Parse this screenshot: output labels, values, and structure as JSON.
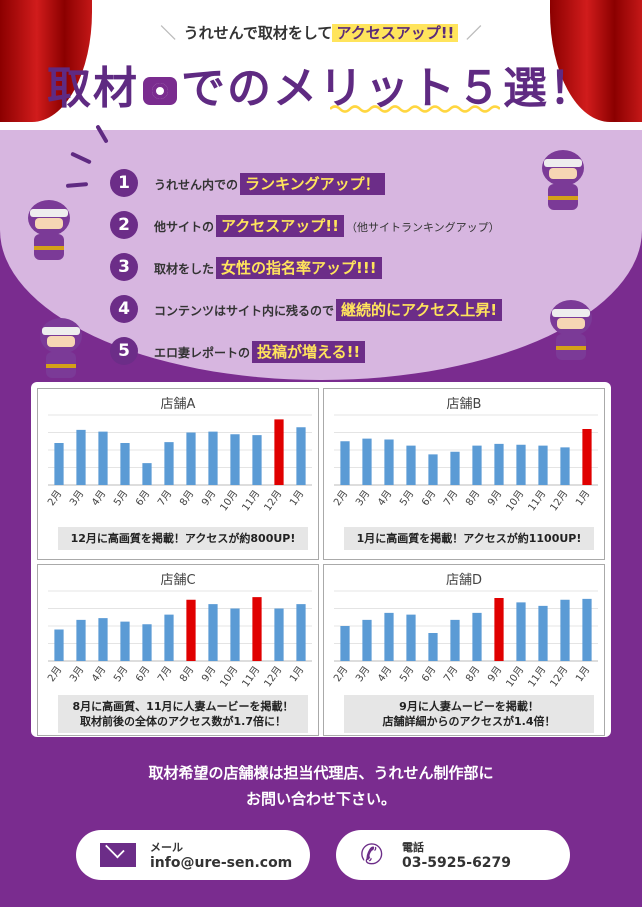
{
  "header": {
    "subtitle_lead": "うれせんで取材をして",
    "subtitle_highlight": "アクセスアップ!!",
    "title_part1": "取材",
    "title_part2": "でのメリット５選！"
  },
  "merits": [
    {
      "num": "1",
      "pre": "うれせん内での",
      "hl": "ランキングアップ！",
      "post": "",
      "note": ""
    },
    {
      "num": "2",
      "pre": "他サイトの",
      "hl": "アクセスアップ!!",
      "post": "",
      "note": "（他サイトランキングアップ）"
    },
    {
      "num": "3",
      "pre": "取材をした",
      "hl": "女性の指名率アップ!!!",
      "post": "",
      "note": ""
    },
    {
      "num": "4",
      "pre": "コンテンツはサイト内に残るので",
      "hl": "継続的にアクセス上昇!",
      "post": "",
      "note": ""
    },
    {
      "num": "5",
      "pre": "エロ妻レポートの",
      "hl": "投稿が増える!!",
      "post": "",
      "note": ""
    }
  ],
  "colors": {
    "bar": "#5b9bd5",
    "highlight_bar": "#e00000",
    "brand": "#6c2d88",
    "accent": "#ffe45c"
  },
  "chart_data": [
    {
      "type": "bar",
      "title": "店舗A",
      "categories": [
        "2月",
        "3月",
        "4月",
        "5月",
        "6月",
        "7月",
        "8月",
        "9月",
        "10月",
        "11月",
        "12月",
        "1月"
      ],
      "values": [
        48,
        63,
        61,
        48,
        25,
        49,
        60,
        61,
        58,
        57,
        75,
        66
      ],
      "highlight": [
        10
      ],
      "ylim": [
        0,
        80
      ],
      "note": [
        "12月に高画質を掲載！アクセスが約800UP!"
      ]
    },
    {
      "type": "bar",
      "title": "店舗B",
      "categories": [
        "2月",
        "3月",
        "4月",
        "5月",
        "6月",
        "7月",
        "8月",
        "9月",
        "10月",
        "11月",
        "12月",
        "1月"
      ],
      "values": [
        50,
        53,
        52,
        45,
        35,
        38,
        45,
        47,
        46,
        45,
        43,
        64
      ],
      "highlight": [
        11
      ],
      "ylim": [
        0,
        80
      ],
      "note": [
        "1月に高画質を掲載！アクセスが約1100UP!"
      ]
    },
    {
      "type": "bar",
      "title": "店舗C",
      "categories": [
        "2月",
        "3月",
        "4月",
        "5月",
        "6月",
        "7月",
        "8月",
        "9月",
        "10月",
        "11月",
        "12月",
        "1月"
      ],
      "values": [
        36,
        47,
        49,
        45,
        42,
        53,
        70,
        65,
        60,
        73,
        60,
        65
      ],
      "highlight": [
        6,
        9
      ],
      "ylim": [
        0,
        80
      ],
      "note": [
        "8月に高画質、11月に人妻ムービーを掲載！",
        "取材前後の全体のアクセス数が1.7倍に！"
      ]
    },
    {
      "type": "bar",
      "title": "店舗D",
      "categories": [
        "2月",
        "3月",
        "4月",
        "5月",
        "6月",
        "7月",
        "8月",
        "9月",
        "10月",
        "11月",
        "12月",
        "1月"
      ],
      "values": [
        40,
        47,
        55,
        53,
        32,
        47,
        55,
        72,
        67,
        63,
        70,
        71
      ],
      "highlight": [
        7
      ],
      "ylim": [
        0,
        80
      ],
      "note": [
        "9月に人妻ムービーを掲載！",
        "店舗詳細からのアクセスが1.4倍！"
      ]
    }
  ],
  "footer": {
    "cta_line1": "取材希望の店舗様は担当代理店、うれせん制作部に",
    "cta_line2": "お問い合わせ下さい。",
    "mail_label": "メール",
    "mail_value": "info@ure-sen.com",
    "tel_label": "電話",
    "tel_value": "03-5925-6279"
  }
}
